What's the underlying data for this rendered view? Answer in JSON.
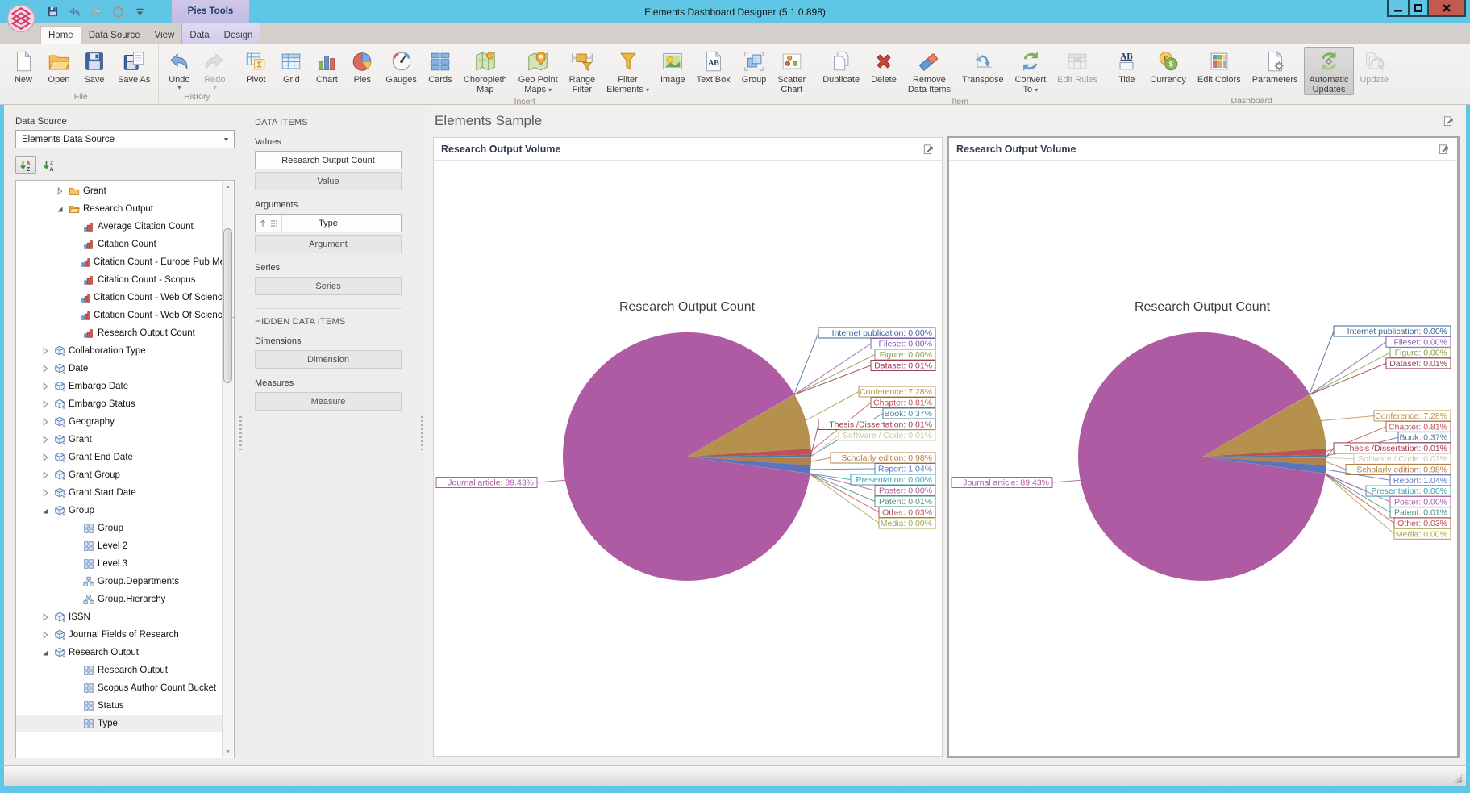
{
  "window": {
    "title": "Elements Dashboard Designer (5.1.0.898)",
    "contextual_tab_group": "Pies Tools",
    "quick_access": [
      "save",
      "undo",
      "redo",
      "refresh",
      "customize-quick-access"
    ],
    "controls": [
      "minimize",
      "maximize",
      "close"
    ]
  },
  "ribbon": {
    "tabs": [
      {
        "label": "Home",
        "selected": true
      },
      {
        "label": "Data Source"
      },
      {
        "label": "View"
      },
      {
        "label": "Data",
        "contextual": true
      },
      {
        "label": "Design",
        "contextual": true
      }
    ],
    "groups": [
      {
        "label": "File",
        "buttons": [
          {
            "lines": [
              "New"
            ],
            "icon": "new-document"
          },
          {
            "lines": [
              "Open"
            ],
            "icon": "open-folder"
          },
          {
            "lines": [
              "Save"
            ],
            "icon": "save"
          },
          {
            "lines": [
              "Save As"
            ],
            "icon": "save-as"
          }
        ]
      },
      {
        "label": "History",
        "buttons": [
          {
            "lines": [
              "Undo"
            ],
            "icon": "undo",
            "caret_below": true
          },
          {
            "lines": [
              "Redo"
            ],
            "icon": "redo",
            "caret_below": true,
            "disabled": true
          }
        ]
      },
      {
        "label": "Insert",
        "buttons": [
          {
            "lines": [
              "Pivot"
            ],
            "icon": "pivot"
          },
          {
            "lines": [
              "Grid"
            ],
            "icon": "grid"
          },
          {
            "lines": [
              "Chart"
            ],
            "icon": "chart"
          },
          {
            "lines": [
              "Pies"
            ],
            "icon": "pies"
          },
          {
            "lines": [
              "Gauges"
            ],
            "icon": "gauges"
          },
          {
            "lines": [
              "Cards"
            ],
            "icon": "cards"
          },
          {
            "lines": [
              "Choropleth",
              "Map"
            ],
            "icon": "choropleth-map"
          },
          {
            "lines": [
              "Geo Point",
              "Maps"
            ],
            "icon": "geo-point-maps",
            "caret": true
          },
          {
            "lines": [
              "Range",
              "Filter"
            ],
            "icon": "range-filter"
          },
          {
            "lines": [
              "Filter",
              "Elements"
            ],
            "icon": "filter-elements",
            "caret": true
          },
          {
            "lines": [
              "Image"
            ],
            "icon": "image"
          },
          {
            "lines": [
              "Text Box"
            ],
            "icon": "text-box"
          },
          {
            "lines": [
              "Group"
            ],
            "icon": "group"
          },
          {
            "lines": [
              "Scatter",
              "Chart"
            ],
            "icon": "scatter-chart"
          }
        ]
      },
      {
        "label": "Item",
        "buttons": [
          {
            "lines": [
              "Duplicate"
            ],
            "icon": "duplicate"
          },
          {
            "lines": [
              "Delete"
            ],
            "icon": "delete"
          },
          {
            "lines": [
              "Remove",
              "Data Items"
            ],
            "icon": "remove-data-items"
          },
          {
            "lines": [
              "Transpose"
            ],
            "icon": "transpose"
          },
          {
            "lines": [
              "Convert",
              "To"
            ],
            "icon": "convert-to",
            "caret": true
          },
          {
            "lines": [
              "Edit Rules"
            ],
            "icon": "edit-rules",
            "disabled": true
          }
        ]
      },
      {
        "label": "Dashboard",
        "buttons": [
          {
            "lines": [
              "Title"
            ],
            "icon": "title"
          },
          {
            "lines": [
              "Currency"
            ],
            "icon": "currency"
          },
          {
            "lines": [
              "Edit Colors"
            ],
            "icon": "edit-colors"
          },
          {
            "lines": [
              "Parameters"
            ],
            "icon": "parameters"
          },
          {
            "lines": [
              "Automatic",
              "Updates"
            ],
            "icon": "automatic-updates",
            "active": true
          },
          {
            "lines": [
              "Update"
            ],
            "icon": "update",
            "disabled": true
          }
        ]
      }
    ]
  },
  "data_source_panel": {
    "label": "Data Source",
    "selected_source": "Elements Data Source",
    "sort_buttons": [
      "sort-ascending",
      "sort-descending"
    ],
    "tree": [
      {
        "label": "Grant",
        "depth": 2,
        "icon": "folder",
        "arrow": "collapsed"
      },
      {
        "label": "Research Output",
        "depth": 2,
        "icon": "folder-open",
        "arrow": "expanded"
      },
      {
        "label": "Average Citation Count",
        "depth": 3,
        "icon": "measure"
      },
      {
        "label": "Citation Count",
        "depth": 3,
        "icon": "measure"
      },
      {
        "label": "Citation Count - Europe Pub Me...",
        "depth": 3,
        "icon": "measure"
      },
      {
        "label": "Citation Count - Scopus",
        "depth": 3,
        "icon": "measure"
      },
      {
        "label": "Citation Count - Web Of Science",
        "depth": 3,
        "icon": "measure"
      },
      {
        "label": "Citation Count - Web Of Science...",
        "depth": 3,
        "icon": "measure"
      },
      {
        "label": "Research Output Count",
        "depth": 3,
        "icon": "measure"
      },
      {
        "label": "Collaboration Type",
        "depth": 1,
        "icon": "cube",
        "arrow": "collapsed"
      },
      {
        "label": "Date",
        "depth": 1,
        "icon": "cube",
        "arrow": "collapsed"
      },
      {
        "label": "Embargo Date",
        "depth": 1,
        "icon": "cube",
        "arrow": "collapsed"
      },
      {
        "label": "Embargo Status",
        "depth": 1,
        "icon": "cube",
        "arrow": "collapsed"
      },
      {
        "label": "Geography",
        "depth": 1,
        "icon": "cube",
        "arrow": "collapsed"
      },
      {
        "label": "Grant",
        "depth": 1,
        "icon": "cube",
        "arrow": "collapsed"
      },
      {
        "label": "Grant End Date",
        "depth": 1,
        "icon": "cube",
        "arrow": "collapsed"
      },
      {
        "label": "Grant Group",
        "depth": 1,
        "icon": "cube",
        "arrow": "collapsed"
      },
      {
        "label": "Grant Start Date",
        "depth": 1,
        "icon": "cube",
        "arrow": "collapsed"
      },
      {
        "label": "Group",
        "depth": 1,
        "icon": "cube",
        "arrow": "expanded"
      },
      {
        "label": "Group",
        "depth": 3,
        "icon": "grid4"
      },
      {
        "label": "Level 2",
        "depth": 3,
        "icon": "grid4"
      },
      {
        "label": "Level 3",
        "depth": 3,
        "icon": "grid4"
      },
      {
        "label": "Group.Departments",
        "depth": 3,
        "icon": "hierarchy"
      },
      {
        "label": "Group.Hierarchy",
        "depth": 3,
        "icon": "hierarchy"
      },
      {
        "label": "ISSN",
        "depth": 1,
        "icon": "cube",
        "arrow": "collapsed"
      },
      {
        "label": "Journal Fields of Research",
        "depth": 1,
        "icon": "cube",
        "arrow": "collapsed"
      },
      {
        "label": "Research Output",
        "depth": 1,
        "icon": "cube",
        "arrow": "expanded"
      },
      {
        "label": "Research Output",
        "depth": 3,
        "icon": "grid4"
      },
      {
        "label": "Scopus Author Count Bucket",
        "depth": 3,
        "icon": "grid4"
      },
      {
        "label": "Status",
        "depth": 3,
        "icon": "grid4"
      },
      {
        "label": "Type",
        "depth": 3,
        "icon": "grid4",
        "selected": true
      }
    ]
  },
  "data_items_panel": {
    "title": "DATA ITEMS",
    "hidden_title": "HIDDEN DATA ITEMS",
    "sections": [
      {
        "label": "Values",
        "items": [
          {
            "label": "Research Output Count",
            "filled": true
          },
          {
            "label": "Value"
          }
        ]
      },
      {
        "label": "Arguments",
        "items": [
          {
            "label": "Type",
            "filled": true,
            "prefix_icons": [
              "sort-ascending-small",
              "grouping"
            ]
          },
          {
            "label": "Argument"
          }
        ]
      },
      {
        "label": "Series",
        "items": [
          {
            "label": "Series"
          }
        ]
      }
    ],
    "hidden_sections": [
      {
        "label": "Dimensions",
        "items": [
          {
            "label": "Dimension"
          }
        ]
      },
      {
        "label": "Measures",
        "items": [
          {
            "label": "Measure"
          }
        ]
      }
    ]
  },
  "dashboard": {
    "title": "Elements Sample",
    "panels": [
      {
        "title": "Research Output Volume",
        "selected": false
      },
      {
        "title": "Research Output Volume",
        "selected": true
      }
    ]
  },
  "chart_data": [
    {
      "type": "pie",
      "title": "Research Output Count",
      "unit": "%",
      "slices": [
        {
          "label": "Internet publication",
          "value": 0.0,
          "color": "#3C6595"
        },
        {
          "label": "Fileset",
          "value": 0.0,
          "color": "#7B5EA7"
        },
        {
          "label": "Figure",
          "value": 0.0,
          "color": "#8A9A4B"
        },
        {
          "label": "Dataset",
          "value": 0.01,
          "color": "#964053"
        },
        {
          "label": "Conference",
          "value": 7.28,
          "color": "#B6914E"
        },
        {
          "label": "Chapter",
          "value": 0.81,
          "color": "#C05057"
        },
        {
          "label": "Book",
          "value": 0.37,
          "color": "#4E7E9C"
        },
        {
          "label": "Thesis /Dissertation",
          "value": 0.01,
          "color": "#A13B4E"
        },
        {
          "label": "Software / Code",
          "value": 0.01,
          "color": "#CDC6A2"
        },
        {
          "label": "Scholarly edition",
          "value": 0.98,
          "color": "#B0814B"
        },
        {
          "label": "Report",
          "value": 1.04,
          "color": "#5B74C0"
        },
        {
          "label": "Presentation",
          "value": 0.0,
          "color": "#399FAC"
        },
        {
          "label": "Poster",
          "value": 0.0,
          "color": "#A85F9F"
        },
        {
          "label": "Patent",
          "value": 0.01,
          "color": "#4A9380"
        },
        {
          "label": "Other",
          "value": 0.03,
          "color": "#BE4B53"
        },
        {
          "label": "Media",
          "value": 0.0,
          "color": "#A3A34E"
        },
        {
          "label": "Journal article",
          "value": 89.43,
          "color": "#AE5BA3"
        }
      ]
    },
    {
      "type": "pie",
      "title": "Research Output Count",
      "unit": "%",
      "slices": [
        {
          "label": "Internet publication",
          "value": 0.0,
          "color": "#3C6595"
        },
        {
          "label": "Fileset",
          "value": 0.0,
          "color": "#7B5EA7"
        },
        {
          "label": "Figure",
          "value": 0.0,
          "color": "#8A9A4B"
        },
        {
          "label": "Dataset",
          "value": 0.01,
          "color": "#964053"
        },
        {
          "label": "Conference",
          "value": 7.28,
          "color": "#B6914E"
        },
        {
          "label": "Chapter",
          "value": 0.81,
          "color": "#C05057"
        },
        {
          "label": "Book",
          "value": 0.37,
          "color": "#4E7E9C"
        },
        {
          "label": "Thesis /Dissertation",
          "value": 0.01,
          "color": "#A13B4E"
        },
        {
          "label": "Software / Code",
          "value": 0.01,
          "color": "#CDC6A2"
        },
        {
          "label": "Scholarly edition",
          "value": 0.98,
          "color": "#B0814B"
        },
        {
          "label": "Report",
          "value": 1.04,
          "color": "#5B74C0"
        },
        {
          "label": "Presentation",
          "value": 0.0,
          "color": "#399FAC"
        },
        {
          "label": "Poster",
          "value": 0.0,
          "color": "#A85F9F"
        },
        {
          "label": "Patent",
          "value": 0.01,
          "color": "#4A9380"
        },
        {
          "label": "Other",
          "value": 0.03,
          "color": "#BE4B53"
        },
        {
          "label": "Media",
          "value": 0.0,
          "color": "#A3A34E"
        },
        {
          "label": "Journal article",
          "value": 89.43,
          "color": "#AE5BA3"
        }
      ]
    }
  ]
}
